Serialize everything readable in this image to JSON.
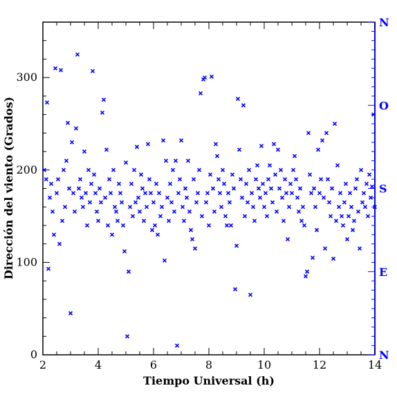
{
  "chart_data": {
    "type": "scatter",
    "title": "",
    "xlabel": "Tiempo Universal (h)",
    "ylabel": "Dirección del viento (Grados)",
    "xlim": [
      2,
      14
    ],
    "ylim": [
      0,
      360
    ],
    "x_ticks": [
      2,
      4,
      6,
      8,
      10,
      12,
      14
    ],
    "y_ticks": [
      0,
      100,
      200,
      300
    ],
    "right_axis_labels": [
      {
        "value": 360,
        "label": "N"
      },
      {
        "value": 270,
        "label": "O"
      },
      {
        "value": 180,
        "label": "S"
      },
      {
        "value": 90,
        "label": "E"
      },
      {
        "value": 0,
        "label": "N"
      }
    ],
    "marker": "x",
    "marker_color": "#0000ff",
    "grid": false,
    "points": [
      [
        2.05,
        200
      ],
      [
        2.12,
        190
      ],
      [
        2.15,
        273
      ],
      [
        2.2,
        93
      ],
      [
        2.25,
        170
      ],
      [
        2.3,
        185
      ],
      [
        2.35,
        155
      ],
      [
        2.4,
        130
      ],
      [
        2.45,
        310
      ],
      [
        2.5,
        175
      ],
      [
        2.55,
        190
      ],
      [
        2.6,
        120
      ],
      [
        2.65,
        308
      ],
      [
        2.7,
        145
      ],
      [
        2.75,
        200
      ],
      [
        2.8,
        160
      ],
      [
        2.85,
        210
      ],
      [
        2.9,
        251
      ],
      [
        2.95,
        180
      ],
      [
        3.0,
        45
      ],
      [
        3.05,
        230
      ],
      [
        3.1,
        175
      ],
      [
        3.15,
        155
      ],
      [
        3.2,
        245
      ],
      [
        3.25,
        325
      ],
      [
        3.3,
        180
      ],
      [
        3.35,
        190
      ],
      [
        3.4,
        170
      ],
      [
        3.45,
        160
      ],
      [
        3.5,
        220
      ],
      [
        3.55,
        175
      ],
      [
        3.6,
        140
      ],
      [
        3.65,
        200
      ],
      [
        3.7,
        165
      ],
      [
        3.75,
        185
      ],
      [
        3.8,
        307
      ],
      [
        3.85,
        195
      ],
      [
        3.9,
        175
      ],
      [
        3.95,
        155
      ],
      [
        4.0,
        145
      ],
      [
        4.05,
        180
      ],
      [
        4.1,
        165
      ],
      [
        4.15,
        262
      ],
      [
        4.2,
        276
      ],
      [
        4.25,
        170
      ],
      [
        4.3,
        222
      ],
      [
        4.35,
        140
      ],
      [
        4.4,
        190
      ],
      [
        4.45,
        175
      ],
      [
        4.5,
        130
      ],
      [
        4.55,
        200
      ],
      [
        4.6,
        160
      ],
      [
        4.65,
        155
      ],
      [
        4.7,
        145
      ],
      [
        4.75,
        185
      ],
      [
        4.8,
        175
      ],
      [
        4.85,
        165
      ],
      [
        4.9,
        140
      ],
      [
        4.95,
        112
      ],
      [
        5.0,
        208
      ],
      [
        5.05,
        20
      ],
      [
        5.1,
        90
      ],
      [
        5.15,
        160
      ],
      [
        5.2,
        185
      ],
      [
        5.25,
        150
      ],
      [
        5.3,
        200
      ],
      [
        5.35,
        165
      ],
      [
        5.4,
        225
      ],
      [
        5.45,
        170
      ],
      [
        5.5,
        155
      ],
      [
        5.55,
        195
      ],
      [
        5.6,
        180
      ],
      [
        5.65,
        145
      ],
      [
        5.7,
        175
      ],
      [
        5.75,
        160
      ],
      [
        5.8,
        228
      ],
      [
        5.85,
        190
      ],
      [
        5.9,
        175
      ],
      [
        5.95,
        135
      ],
      [
        6.0,
        165
      ],
      [
        6.05,
        140
      ],
      [
        6.1,
        185
      ],
      [
        6.15,
        130
      ],
      [
        6.2,
        175
      ],
      [
        6.25,
        150
      ],
      [
        6.3,
        160
      ],
      [
        6.35,
        232
      ],
      [
        6.4,
        102
      ],
      [
        6.45,
        210
      ],
      [
        6.5,
        170
      ],
      [
        6.55,
        145
      ],
      [
        6.6,
        185
      ],
      [
        6.65,
        165
      ],
      [
        6.7,
        200
      ],
      [
        6.75,
        155
      ],
      [
        6.8,
        210
      ],
      [
        6.85,
        10
      ],
      [
        6.9,
        175
      ],
      [
        6.95,
        190
      ],
      [
        7.0,
        232
      ],
      [
        7.05,
        160
      ],
      [
        7.1,
        145
      ],
      [
        7.15,
        180
      ],
      [
        7.2,
        170
      ],
      [
        7.25,
        210
      ],
      [
        7.3,
        155
      ],
      [
        7.35,
        135
      ],
      [
        7.4,
        125
      ],
      [
        7.45,
        190
      ],
      [
        7.5,
        115
      ],
      [
        7.55,
        165
      ],
      [
        7.6,
        175
      ],
      [
        7.65,
        200
      ],
      [
        7.7,
        283
      ],
      [
        7.75,
        150
      ],
      [
        7.8,
        298
      ],
      [
        7.85,
        300
      ],
      [
        7.9,
        165
      ],
      [
        7.95,
        175
      ],
      [
        8.0,
        140
      ],
      [
        8.05,
        195
      ],
      [
        8.1,
        301
      ],
      [
        8.15,
        180
      ],
      [
        8.2,
        155
      ],
      [
        8.25,
        228
      ],
      [
        8.3,
        215
      ],
      [
        8.35,
        190
      ],
      [
        8.4,
        175
      ],
      [
        8.45,
        160
      ],
      [
        8.5,
        200
      ],
      [
        8.55,
        185
      ],
      [
        8.6,
        150
      ],
      [
        8.65,
        140
      ],
      [
        8.7,
        175
      ],
      [
        8.75,
        165
      ],
      [
        8.8,
        140
      ],
      [
        8.85,
        195
      ],
      [
        8.9,
        180
      ],
      [
        8.95,
        71
      ],
      [
        9.0,
        118
      ],
      [
        9.05,
        277
      ],
      [
        9.1,
        222
      ],
      [
        9.15,
        190
      ],
      [
        9.2,
        170
      ],
      [
        9.25,
        270
      ],
      [
        9.3,
        150
      ],
      [
        9.35,
        185
      ],
      [
        9.4,
        165
      ],
      [
        9.45,
        200
      ],
      [
        9.5,
        65
      ],
      [
        9.55,
        175
      ],
      [
        9.6,
        160
      ],
      [
        9.65,
        145
      ],
      [
        9.7,
        190
      ],
      [
        9.75,
        205
      ],
      [
        9.8,
        180
      ],
      [
        9.85,
        170
      ],
      [
        9.9,
        226
      ],
      [
        9.95,
        185
      ],
      [
        10.0,
        160
      ],
      [
        10.05,
        175
      ],
      [
        10.1,
        150
      ],
      [
        10.15,
        190
      ],
      [
        10.2,
        205
      ],
      [
        10.25,
        180
      ],
      [
        10.3,
        165
      ],
      [
        10.35,
        228
      ],
      [
        10.4,
        195
      ],
      [
        10.45,
        155
      ],
      [
        10.5,
        222
      ],
      [
        10.55,
        180
      ],
      [
        10.6,
        200
      ],
      [
        10.65,
        170
      ],
      [
        10.7,
        145
      ],
      [
        10.75,
        190
      ],
      [
        10.8,
        175
      ],
      [
        10.85,
        125
      ],
      [
        10.9,
        160
      ],
      [
        10.95,
        185
      ],
      [
        11.0,
        175
      ],
      [
        11.05,
        200
      ],
      [
        11.1,
        215
      ],
      [
        11.15,
        190
      ],
      [
        11.2,
        170
      ],
      [
        11.25,
        155
      ],
      [
        11.3,
        180
      ],
      [
        11.35,
        145
      ],
      [
        11.4,
        160
      ],
      [
        11.45,
        140
      ],
      [
        11.5,
        85
      ],
      [
        11.55,
        90
      ],
      [
        11.6,
        240
      ],
      [
        11.65,
        195
      ],
      [
        11.7,
        175
      ],
      [
        11.75,
        105
      ],
      [
        11.8,
        180
      ],
      [
        11.85,
        160
      ],
      [
        11.9,
        135
      ],
      [
        11.95,
        222
      ],
      [
        12.0,
        175
      ],
      [
        12.05,
        190
      ],
      [
        12.1,
        232
      ],
      [
        12.15,
        170
      ],
      [
        12.2,
        115
      ],
      [
        12.25,
        240
      ],
      [
        12.3,
        190
      ],
      [
        12.35,
        165
      ],
      [
        12.4,
        150
      ],
      [
        12.45,
        180
      ],
      [
        12.5,
        104
      ],
      [
        12.55,
        250
      ],
      [
        12.6,
        145
      ],
      [
        12.65,
        205
      ],
      [
        12.7,
        160
      ],
      [
        12.75,
        175
      ],
      [
        12.8,
        150
      ],
      [
        12.85,
        140
      ],
      [
        12.9,
        165
      ],
      [
        12.95,
        185
      ],
      [
        13.0,
        125
      ],
      [
        13.05,
        150
      ],
      [
        13.1,
        175
      ],
      [
        13.15,
        160
      ],
      [
        13.2,
        135
      ],
      [
        13.25,
        145
      ],
      [
        13.3,
        180
      ],
      [
        13.35,
        190
      ],
      [
        13.4,
        155
      ],
      [
        13.45,
        115
      ],
      [
        13.5,
        200
      ],
      [
        13.55,
        165
      ],
      [
        13.6,
        175
      ],
      [
        13.65,
        160
      ],
      [
        13.7,
        185
      ],
      [
        13.75,
        150
      ],
      [
        13.8,
        195
      ],
      [
        13.85,
        170
      ],
      [
        13.9,
        182
      ],
      [
        13.95,
        260
      ],
      [
        14.0,
        160
      ]
    ]
  }
}
